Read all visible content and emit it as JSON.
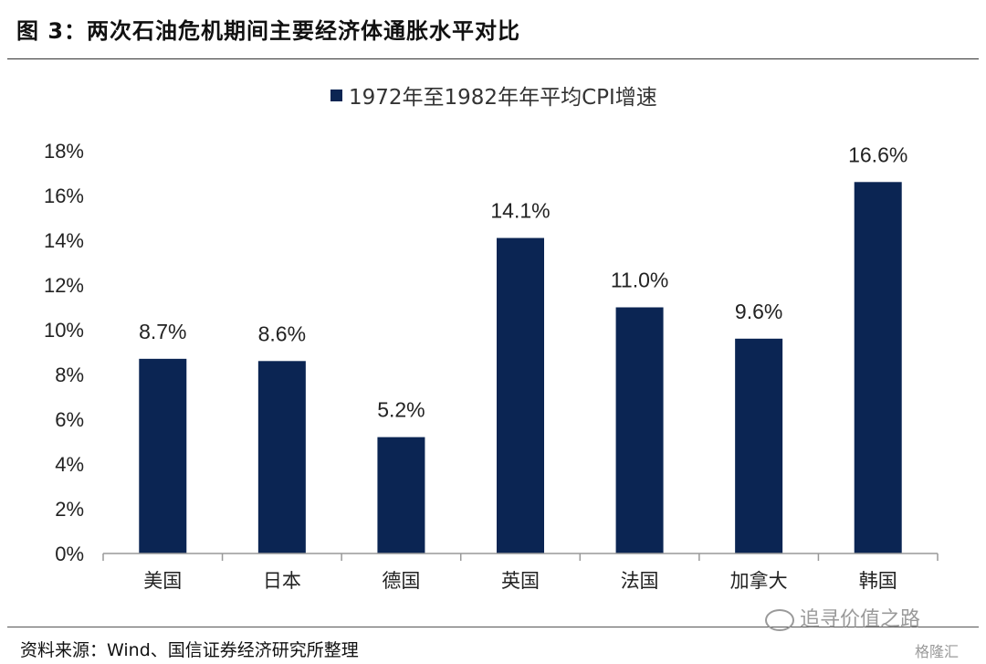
{
  "figure": {
    "title": "图 3：两次石油危机期间主要经济体通胀水平对比",
    "source": "资料来源：Wind、国信证券经济研究所整理",
    "watermark": "追寻价值之路",
    "watermark2": "格隆汇"
  },
  "chart_data": {
    "type": "bar",
    "categories": [
      "美国",
      "日本",
      "德国",
      "英国",
      "法国",
      "加拿大",
      "韩国"
    ],
    "series": [
      {
        "name": "1972年至1982年年平均CPI增速",
        "values": [
          8.7,
          8.6,
          5.2,
          14.1,
          11.0,
          9.6,
          16.6
        ],
        "data_labels": [
          "8.7%",
          "8.6%",
          "5.2%",
          "14.1%",
          "11.0%",
          "9.6%",
          "16.6%"
        ],
        "color": "#0b2553"
      }
    ],
    "ylim": [
      0,
      18
    ],
    "yticks": [
      0,
      2,
      4,
      6,
      8,
      10,
      12,
      14,
      16,
      18
    ],
    "ytick_labels": [
      "0%",
      "2%",
      "4%",
      "6%",
      "8%",
      "10%",
      "12%",
      "14%",
      "16%",
      "18%"
    ],
    "xlabel": "",
    "ylabel": "",
    "grid": false,
    "legend_position": "top-center"
  }
}
